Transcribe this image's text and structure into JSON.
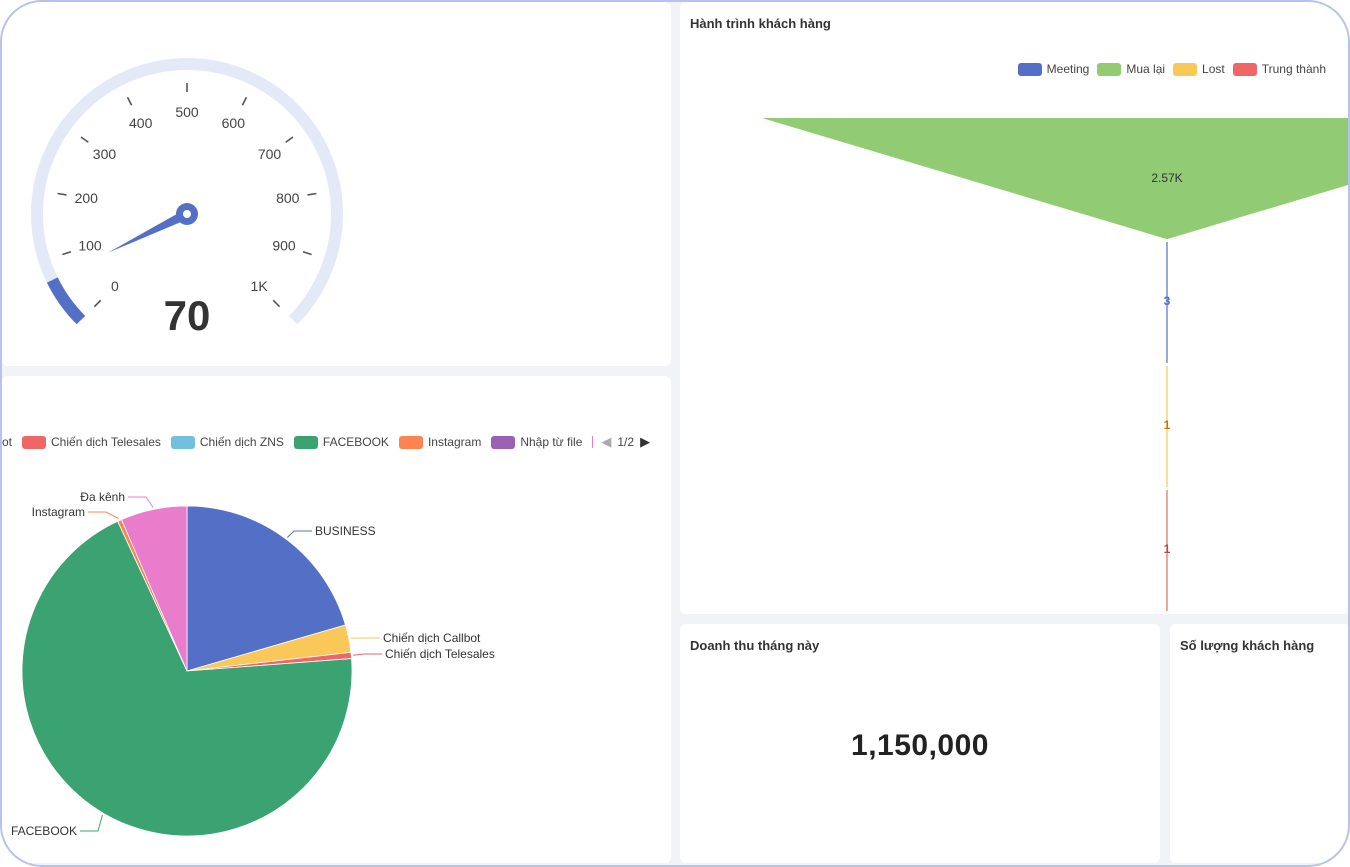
{
  "gauge": {
    "value_text": "70",
    "value": 70,
    "max": 1000,
    "ticks": [
      "0",
      "100",
      "200",
      "300",
      "400",
      "500",
      "600",
      "700",
      "800",
      "900",
      "1K"
    ],
    "colors": {
      "track": "#e3e9f6",
      "progress": "#5470c6",
      "pointer": "#5470c6"
    }
  },
  "pie": {
    "legend": {
      "items": [
        {
          "label": "ot",
          "color": "#fac858"
        },
        {
          "label": "Chiến dịch Telesales",
          "color": "#ee6666"
        },
        {
          "label": "Chiến dịch ZNS",
          "color": "#73c0de"
        },
        {
          "label": "FACEBOOK",
          "color": "#3ba272"
        },
        {
          "label": "Instagram",
          "color": "#fc8452"
        },
        {
          "label": "Nhập từ file",
          "color": "#9a60b4"
        }
      ],
      "page": "1/2"
    }
  },
  "journey": {
    "title": "Hành trình khách hàng",
    "legend": [
      {
        "label": "Meeting",
        "color": "#5470c6"
      },
      {
        "label": "Mua lại",
        "color": "#91cc75"
      },
      {
        "label": "Lost",
        "color": "#fac858"
      },
      {
        "label": "Trung thành",
        "color": "#ee6666"
      }
    ]
  },
  "revenue": {
    "title": "Doanh thu tháng này",
    "value": "1,150,000"
  },
  "customers": {
    "title": "Số lượng khách hàng"
  },
  "chart_data": [
    {
      "type": "pie",
      "categories": [
        "BUSINESS",
        "Chiến dịch Callbot",
        "Chiến dịch Telesales",
        "FACEBOOK",
        "Instagram",
        "Đa kênh"
      ],
      "values": [
        20.5,
        2.7,
        0.6,
        69.3,
        0.4,
        6.5
      ],
      "colors": [
        "#5470c6",
        "#fac858",
        "#ee6666",
        "#3ba272",
        "#fc8452",
        "#ea7ccc"
      ]
    },
    {
      "type": "funnel",
      "categories": [
        "Mua lại",
        "Meeting",
        "Lost",
        "Trung thành"
      ],
      "values": [
        2570,
        3,
        1,
        1
      ],
      "labels": [
        "2.57K",
        "3",
        "1",
        "1"
      ],
      "colors": [
        "#91cc75",
        "#5470c6",
        "#fac858",
        "#ee6666"
      ],
      "label_colors": [
        "#333333",
        "#5470c6",
        "#c07a00",
        "#b54a4a"
      ]
    }
  ]
}
